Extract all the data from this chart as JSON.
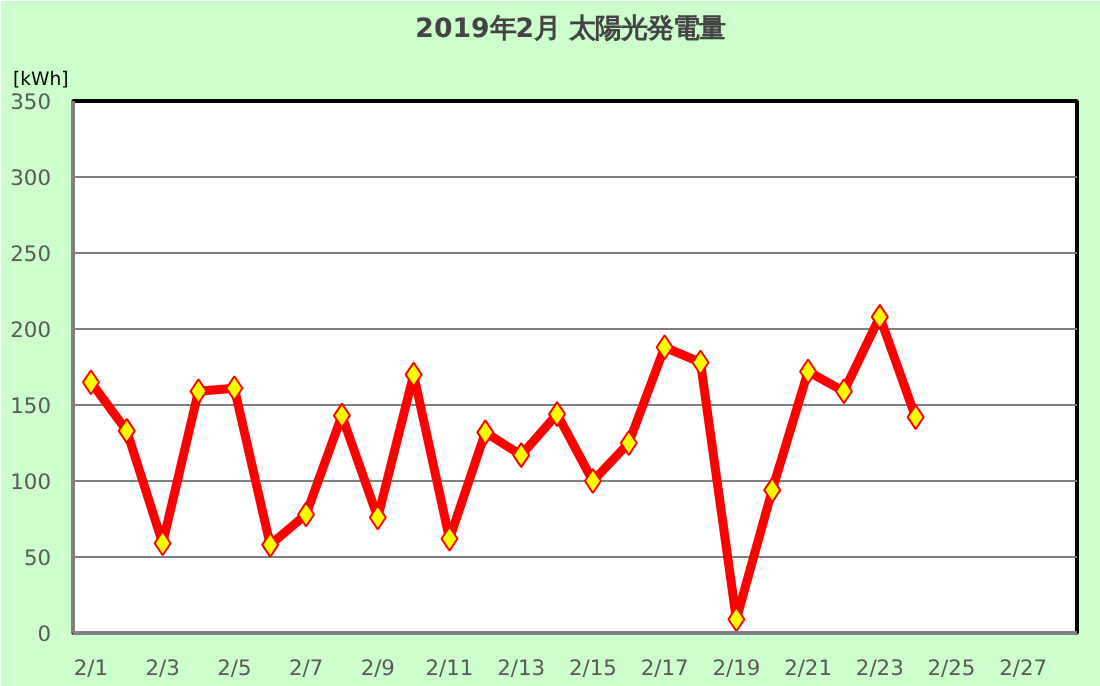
{
  "chart_data": {
    "type": "line",
    "title": "2019年2月  太陽光発電量",
    "ylabel": "[kWh]",
    "x": [
      "2019-02-01",
      "2019-02-02",
      "2019-02-03",
      "2019-02-04",
      "2019-02-05",
      "2019-02-06",
      "2019-02-07",
      "2019-02-08",
      "2019-02-09",
      "2019-02-10",
      "2019-02-11",
      "2019-02-12",
      "2019-02-13",
      "2019-02-14",
      "2019-02-15",
      "2019-02-16",
      "2019-02-17",
      "2019-02-18",
      "2019-02-19",
      "2019-02-20",
      "2019-02-21",
      "2019-02-22",
      "2019-02-23",
      "2019-02-24"
    ],
    "series": [
      {
        "color": "#ff0000",
        "values": [
          165,
          133,
          59,
          159,
          161,
          58,
          78,
          143,
          76,
          170,
          62,
          132,
          117,
          144,
          100,
          125,
          188,
          178,
          9,
          94,
          172,
          159,
          208,
          142
        ]
      }
    ],
    "xlim": [
      "2019-01-31T12:00",
      "2019-02-28T12:00"
    ],
    "xticks": [
      {
        "value": "2019-02-01",
        "label": "2/1"
      },
      {
        "value": "2019-02-03",
        "label": "2/3"
      },
      {
        "value": "2019-02-05",
        "label": "2/5"
      },
      {
        "value": "2019-02-07",
        "label": "2/7"
      },
      {
        "value": "2019-02-09",
        "label": "2/9"
      },
      {
        "value": "2019-02-11",
        "label": "2/11"
      },
      {
        "value": "2019-02-13",
        "label": "2/13"
      },
      {
        "value": "2019-02-15",
        "label": "2/15"
      },
      {
        "value": "2019-02-17",
        "label": "2/17"
      },
      {
        "value": "2019-02-19",
        "label": "2/19"
      },
      {
        "value": "2019-02-21",
        "label": "2/21"
      },
      {
        "value": "2019-02-23",
        "label": "2/23"
      },
      {
        "value": "2019-02-25",
        "label": "2/25"
      },
      {
        "value": "2019-02-27",
        "label": "2/27"
      }
    ],
    "ylim": [
      0,
      350
    ],
    "yticks": [
      0,
      50,
      100,
      150,
      200,
      250,
      300,
      350
    ],
    "grid": "y",
    "marker": "diamond",
    "line_style": "solid"
  }
}
